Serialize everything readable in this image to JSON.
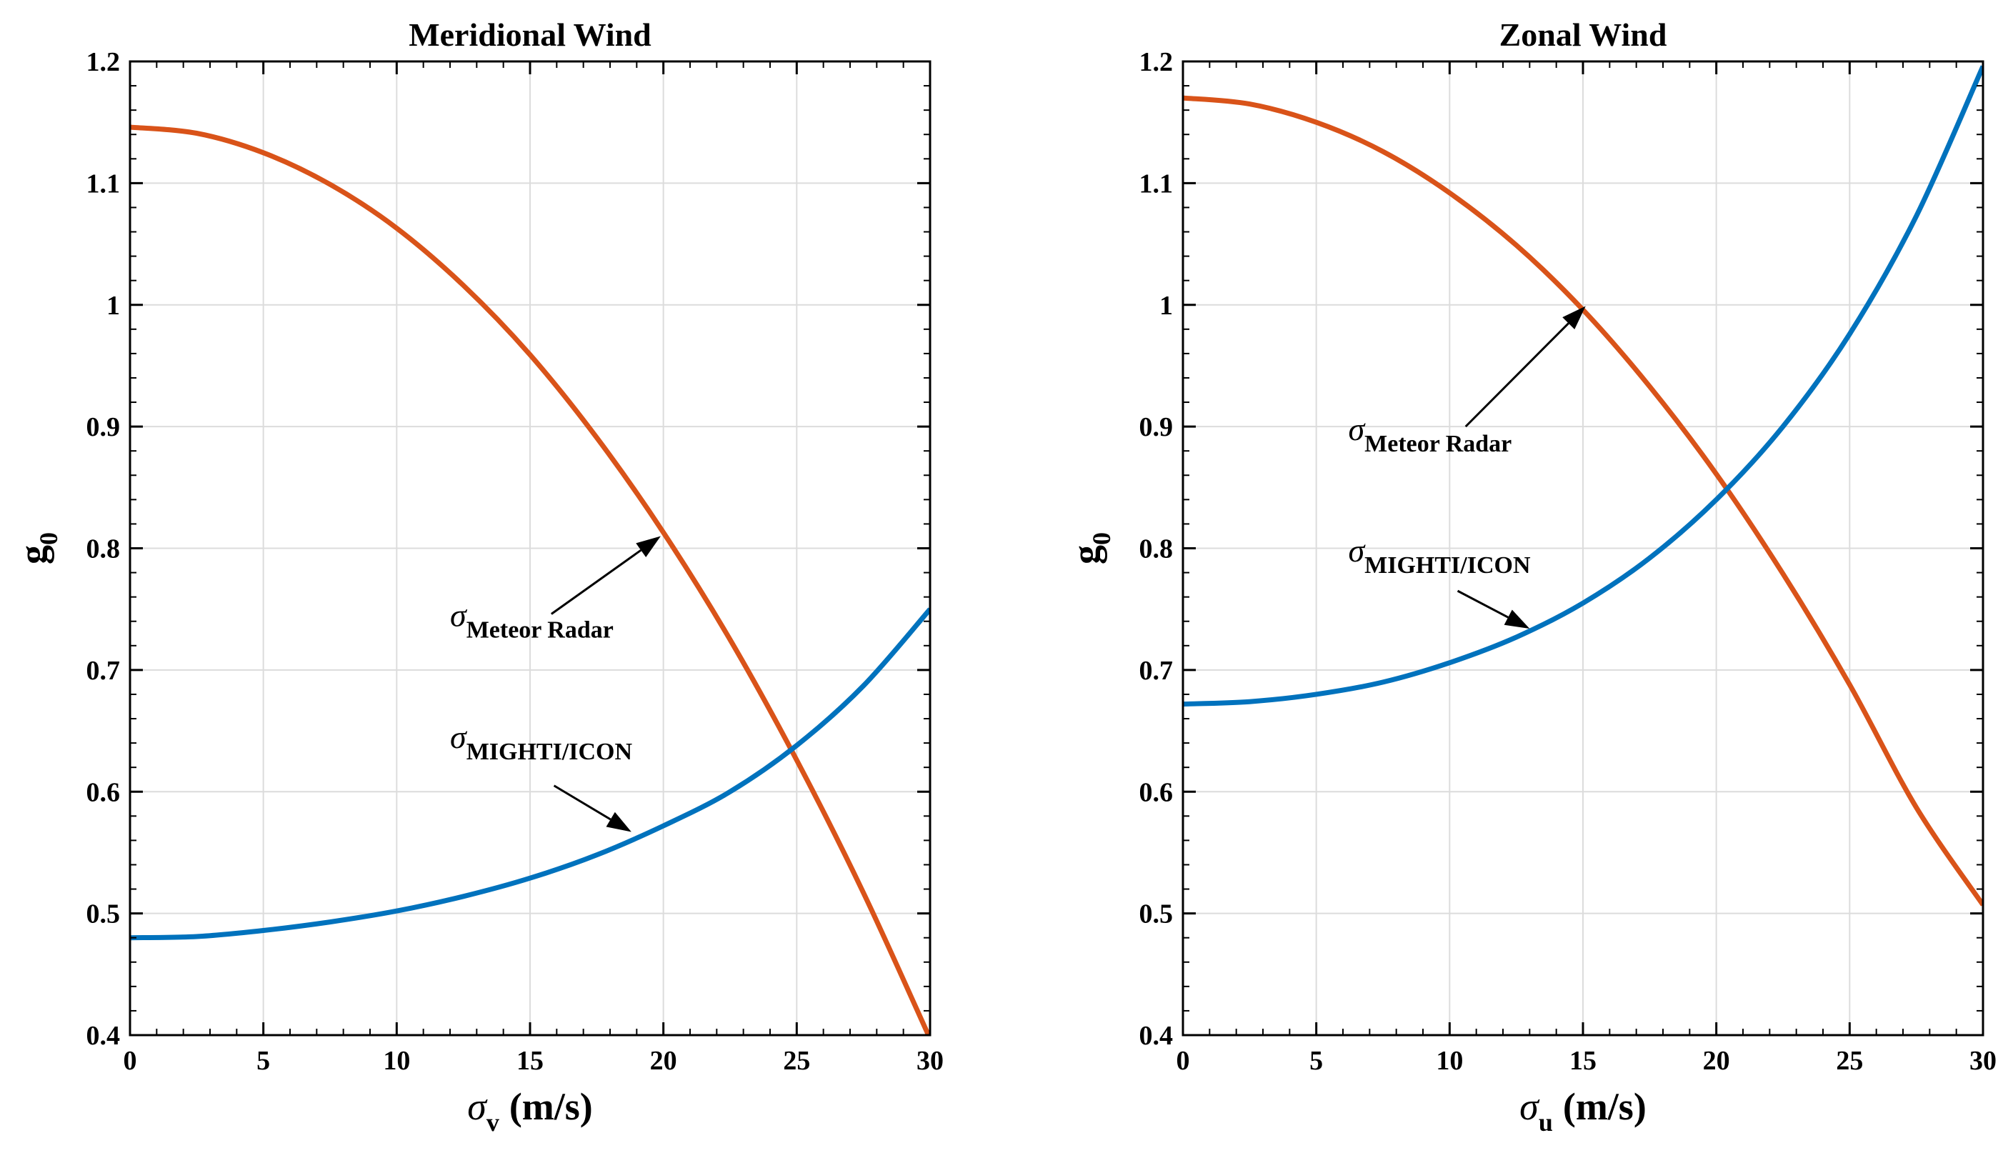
{
  "chart_data": [
    {
      "type": "line",
      "title": "Meridional Wind",
      "xlabel_symbol": "σ",
      "xlabel_subscript": "v",
      "xlabel_units": "(m/s)",
      "ylabel": "g",
      "ylabel_subscript": "0",
      "xlim": [
        0,
        30
      ],
      "ylim": [
        0.4,
        1.2
      ],
      "xticks": [
        0,
        5,
        10,
        15,
        20,
        25,
        30
      ],
      "xtick_labels": [
        "0",
        "5",
        "10",
        "15",
        "20",
        "25",
        "30"
      ],
      "yticks": [
        0.4,
        0.5,
        0.6,
        0.7,
        0.8,
        0.9,
        1.0,
        1.1,
        1.2
      ],
      "ytick_labels": [
        "0.4",
        "0.5",
        "0.6",
        "0.7",
        "0.8",
        "0.9",
        "1",
        "1.1",
        "1.2"
      ],
      "grid": true,
      "series": [
        {
          "name": "Meteor Radar",
          "color": "#D95319",
          "x": [
            0,
            2.5,
            5,
            7.5,
            10,
            12.5,
            15,
            17.5,
            20,
            22.5,
            25,
            27.5,
            30
          ],
          "y": [
            1.146,
            1.141,
            1.125,
            1.099,
            1.063,
            1.016,
            0.959,
            0.891,
            0.813,
            0.725,
            0.626,
            0.517,
            0.397
          ]
        },
        {
          "name": "MIGHTI/ICON",
          "color": "#0072BD",
          "x": [
            0,
            2.5,
            5,
            7.5,
            10,
            12.5,
            15,
            17.5,
            20,
            22.5,
            25,
            27.5,
            30
          ],
          "y": [
            0.48,
            0.481,
            0.486,
            0.493,
            0.502,
            0.514,
            0.529,
            0.548,
            0.572,
            0.6,
            0.638,
            0.687,
            0.75
          ]
        }
      ],
      "annotations": [
        {
          "symbol": "σ",
          "subscript": "Meteor Radar",
          "text_x": 12,
          "text_y": 0.736,
          "arrow_from_x": 15.8,
          "arrow_from_y": 0.746,
          "arrow_to_x": 19.9,
          "arrow_to_y": 0.81
        },
        {
          "symbol": "σ",
          "subscript": "MIGHTI/ICON",
          "text_x": 12,
          "text_y": 0.636,
          "arrow_from_x": 15.9,
          "arrow_from_y": 0.605,
          "arrow_to_x": 18.8,
          "arrow_to_y": 0.567
        }
      ]
    },
    {
      "type": "line",
      "title": "Zonal Wind",
      "xlabel_symbol": "σ",
      "xlabel_subscript": "u",
      "xlabel_units": "(m/s)",
      "ylabel": "g",
      "ylabel_subscript": "0",
      "xlim": [
        0,
        30
      ],
      "ylim": [
        0.4,
        1.2
      ],
      "xticks": [
        0,
        5,
        10,
        15,
        20,
        25,
        30
      ],
      "xtick_labels": [
        "0",
        "5",
        "10",
        "15",
        "20",
        "25",
        "30"
      ],
      "yticks": [
        0.4,
        0.5,
        0.6,
        0.7,
        0.8,
        0.9,
        1.0,
        1.1,
        1.2
      ],
      "ytick_labels": [
        "0.4",
        "0.5",
        "0.6",
        "0.7",
        "0.8",
        "0.9",
        "1",
        "1.1",
        "1.2"
      ],
      "grid": true,
      "series": [
        {
          "name": "Meteor Radar",
          "color": "#D95319",
          "x": [
            0,
            2.5,
            5,
            7.5,
            10,
            12.5,
            15,
            17.5,
            20,
            22.5,
            25,
            27.5,
            30
          ],
          "y": [
            1.17,
            1.165,
            1.15,
            1.126,
            1.092,
            1.049,
            0.996,
            0.933,
            0.861,
            0.779,
            0.688,
            0.587,
            0.507
          ]
        },
        {
          "name": "MIGHTI/ICON",
          "color": "#0072BD",
          "x": [
            0,
            2.5,
            5,
            7.5,
            10,
            12.5,
            15,
            17.5,
            20,
            22.5,
            25,
            27.5,
            30
          ],
          "y": [
            0.672,
            0.674,
            0.68,
            0.69,
            0.706,
            0.727,
            0.755,
            0.792,
            0.84,
            0.9,
            0.976,
            1.073,
            1.196
          ]
        }
      ],
      "annotations": [
        {
          "symbol": "σ",
          "subscript": "Meteor Radar",
          "text_x": 6.2,
          "text_y": 0.889,
          "arrow_from_x": 10.6,
          "arrow_from_y": 0.9,
          "arrow_to_x": 15.1,
          "arrow_to_y": 0.999
        },
        {
          "symbol": "σ",
          "subscript": "MIGHTI/ICON",
          "text_x": 6.2,
          "text_y": 0.789,
          "arrow_from_x": 10.3,
          "arrow_from_y": 0.765,
          "arrow_to_x": 13,
          "arrow_to_y": 0.734
        }
      ]
    }
  ]
}
